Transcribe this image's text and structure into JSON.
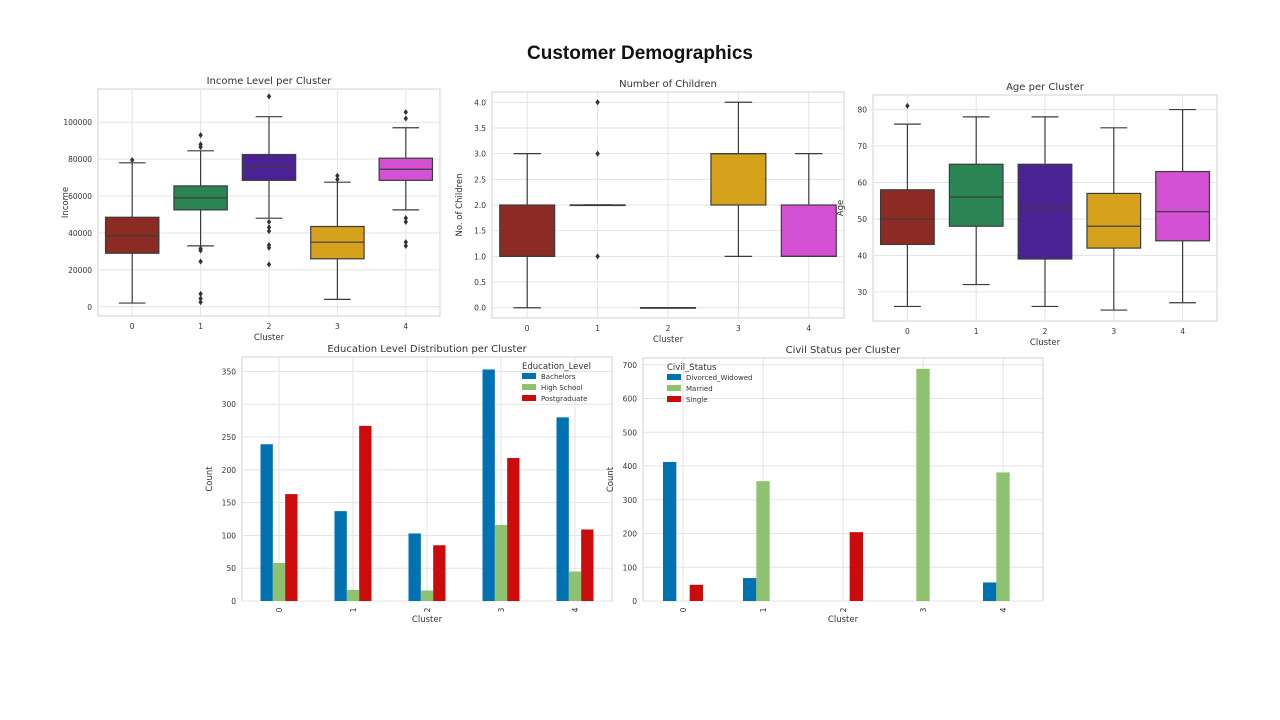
{
  "page": {
    "title": "Customer Demographics"
  },
  "chart_data": [
    {
      "type": "box",
      "title": "Income Level per Cluster",
      "xlabel": "Cluster",
      "ylabel": "Income",
      "categories": [
        "0",
        "1",
        "2",
        "3",
        "4"
      ],
      "ylim": [
        -5000,
        118000
      ],
      "yticks": [
        0,
        20000,
        40000,
        60000,
        80000,
        100000
      ],
      "boxes": [
        {
          "q1": 29000,
          "median": 38500,
          "q3": 48500,
          "whisker_low": 2000,
          "whisker_high": 78000,
          "outliers": [
            79500
          ],
          "color": "#8b2b24"
        },
        {
          "q1": 52500,
          "median": 59000,
          "q3": 65500,
          "whisker_low": 33000,
          "whisker_high": 84500,
          "outliers": [
            93000,
            88000,
            86500,
            31500,
            30500,
            24500,
            7000,
            4500,
            2500
          ],
          "color": "#2a8454"
        },
        {
          "q1": 68500,
          "median": 75500,
          "q3": 82500,
          "whisker_low": 48000,
          "whisker_high": 103000,
          "outliers": [
            114000,
            46000,
            43000,
            41000,
            33500,
            32000,
            23000
          ],
          "color": "#4b2293"
        },
        {
          "q1": 26000,
          "median": 35000,
          "q3": 43500,
          "whisker_low": 4000,
          "whisker_high": 67500,
          "outliers": [
            71000,
            69000
          ],
          "color": "#d6a21c"
        },
        {
          "q1": 68500,
          "median": 74500,
          "q3": 80500,
          "whisker_low": 52500,
          "whisker_high": 97000,
          "outliers": [
            105500,
            102000,
            48000,
            46000,
            35000,
            33000
          ],
          "color": "#d451d4"
        }
      ]
    },
    {
      "type": "box",
      "title": "Number of Children",
      "xlabel": "Cluster",
      "ylabel": "No. of Children",
      "categories": [
        "0",
        "1",
        "2",
        "3",
        "4"
      ],
      "ylim": [
        -0.2,
        4.2
      ],
      "yticks": [
        "0.0",
        "0.5",
        "1.0",
        "1.5",
        "2.0",
        "2.5",
        "3.0",
        "3.5",
        "4.0"
      ],
      "boxes": [
        {
          "q1": 1,
          "median": 1,
          "q3": 2,
          "whisker_low": 0,
          "whisker_high": 3,
          "outliers": [],
          "color": "#8b2b24"
        },
        {
          "q1": 2,
          "median": 2,
          "q3": 2,
          "whisker_low": 2,
          "whisker_high": 2,
          "outliers": [
            4,
            3,
            1
          ],
          "color": "#2a8454"
        },
        {
          "q1": 0,
          "median": 0,
          "q3": 0,
          "whisker_low": 0,
          "whisker_high": 0,
          "outliers": [],
          "color": "#4b2293"
        },
        {
          "q1": 2,
          "median": 3,
          "q3": 3,
          "whisker_low": 1,
          "whisker_high": 4,
          "outliers": [],
          "color": "#d6a21c"
        },
        {
          "q1": 1,
          "median": 1,
          "q3": 2,
          "whisker_low": 1,
          "whisker_high": 3,
          "outliers": [],
          "color": "#d451d4"
        }
      ]
    },
    {
      "type": "box",
      "title": "Age per Cluster",
      "xlabel": "Cluster",
      "ylabel": "Age",
      "categories": [
        "0",
        "1",
        "2",
        "3",
        "4"
      ],
      "ylim": [
        22,
        84
      ],
      "yticks": [
        30,
        40,
        50,
        60,
        70,
        80
      ],
      "boxes": [
        {
          "q1": 43,
          "median": 50,
          "q3": 58,
          "whisker_low": 26,
          "whisker_high": 76,
          "outliers": [
            81
          ],
          "color": "#8b2b24"
        },
        {
          "q1": 48,
          "median": 56,
          "q3": 65,
          "whisker_low": 32,
          "whisker_high": 78,
          "outliers": [],
          "color": "#2a8454"
        },
        {
          "q1": 39,
          "median": 53,
          "q3": 65,
          "whisker_low": 26,
          "whisker_high": 78,
          "outliers": [],
          "color": "#4b2293"
        },
        {
          "q1": 42,
          "median": 48,
          "q3": 57,
          "whisker_low": 25,
          "whisker_high": 75,
          "outliers": [],
          "color": "#d6a21c"
        },
        {
          "q1": 44,
          "median": 52,
          "q3": 63,
          "whisker_low": 27,
          "whisker_high": 80,
          "outliers": [],
          "color": "#d451d4"
        }
      ]
    },
    {
      "type": "bar",
      "title": "Education Level Distribution per Cluster",
      "xlabel": "Cluster",
      "ylabel": "Count",
      "categories": [
        "0",
        "1",
        "2",
        "3",
        "4"
      ],
      "ylim": [
        0,
        372
      ],
      "yticks": [
        0,
        50,
        100,
        150,
        200,
        250,
        300,
        350
      ],
      "legend_title": "Education_Level",
      "legend_position": "top-right",
      "series": [
        {
          "name": "Bachelors",
          "values": [
            239,
            137,
            103,
            353,
            280
          ],
          "color": "#0072b2"
        },
        {
          "name": "High School",
          "values": [
            58,
            17,
            16,
            116,
            45
          ],
          "color": "#8fc26f"
        },
        {
          "name": "Postgraduate",
          "values": [
            163,
            267,
            85,
            218,
            109
          ],
          "color": "#cc0c0c"
        }
      ]
    },
    {
      "type": "bar",
      "title": "Civil Status per Cluster",
      "xlabel": "Cluster",
      "ylabel": "Count",
      "categories": [
        "0",
        "1",
        "2",
        "3",
        "4"
      ],
      "ylim": [
        0,
        720
      ],
      "yticks": [
        0,
        100,
        200,
        300,
        400,
        500,
        600,
        700
      ],
      "legend_title": "Civil_Status",
      "legend_position": "top-left",
      "series": [
        {
          "name": "Divorced_Widowed",
          "values": [
            412,
            68,
            0,
            0,
            55
          ],
          "color": "#0072b2"
        },
        {
          "name": "Married",
          "values": [
            0,
            355,
            0,
            688,
            381
          ],
          "color": "#8fc26f"
        },
        {
          "name": "Single",
          "values": [
            48,
            0,
            204,
            0,
            0
          ],
          "color": "#cc0c0c"
        }
      ]
    }
  ]
}
